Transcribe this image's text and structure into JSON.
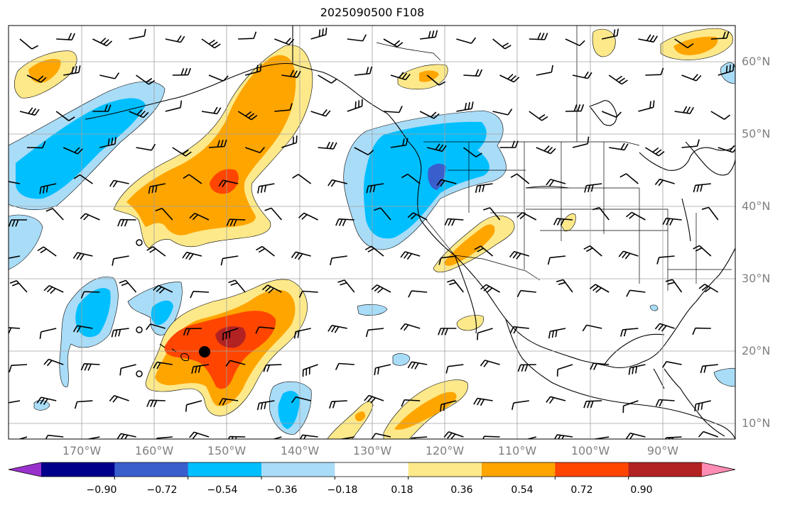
{
  "title": "2025090500 F108",
  "map": {
    "lat_labels": [
      "60°N",
      "50°N",
      "40°N",
      "30°N",
      "20°N",
      "10°N"
    ],
    "lon_labels": [
      "170°W",
      "160°W",
      "150°W",
      "140°W",
      "130°W",
      "120°W",
      "110°W",
      "100°W",
      "90°W"
    ],
    "fill_colors": {
      "light_blue": "#a9dcf7",
      "blue": "#00bfff",
      "dark_blue": "#3a5fcd",
      "yellow": "#fde98a",
      "orange": "#ffa500",
      "red_orange": "#ff4500",
      "dark_red": "#b22222",
      "land_outline": "#000000",
      "grid": "#a0a0a0"
    }
  },
  "colorbar": {
    "tick_labels": [
      "−0.90",
      "−0.72",
      "−0.54",
      "−0.36",
      "−0.18",
      "0.18",
      "0.36",
      "0.54",
      "0.72",
      "0.90"
    ],
    "colors": [
      "#9932cc",
      "#00008b",
      "#3a5fcd",
      "#00bfff",
      "#a9dcf7",
      "#ffffff",
      "#fde98a",
      "#ffa500",
      "#ff4500",
      "#b22222",
      "#ff8cb4"
    ]
  }
}
